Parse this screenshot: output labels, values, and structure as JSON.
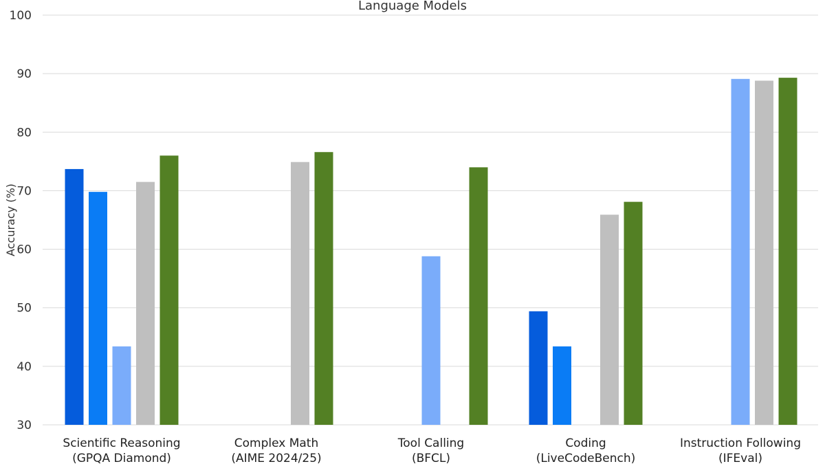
{
  "chart_data": {
    "type": "bar",
    "title": "Language Models",
    "ylabel": "Accuracy (%)",
    "xlabel": "",
    "ylim": [
      30,
      100
    ],
    "yticks": [
      30,
      40,
      50,
      60,
      70,
      80,
      90,
      100
    ],
    "grid": true,
    "categories": [
      [
        "Scientific Reasoning",
        "(GPQA Diamond)"
      ],
      [
        "Complex Math",
        "(AIME 2024/25)"
      ],
      [
        "Tool Calling",
        "(BFCL)"
      ],
      [
        "Coding",
        "(LiveCodeBench)"
      ],
      [
        "Instruction Following",
        "(IFEval)"
      ]
    ],
    "series": [
      {
        "color": "#055cdc",
        "values": [
          73.7,
          null,
          null,
          49.4,
          null
        ]
      },
      {
        "color": "#0a7cf5",
        "values": [
          69.8,
          null,
          null,
          43.4,
          null
        ]
      },
      {
        "color": "#7aacfa",
        "values": [
          43.4,
          null,
          58.8,
          null,
          89.1
        ]
      },
      {
        "color": "#bfbfbf",
        "values": [
          71.5,
          74.9,
          null,
          65.9,
          88.8
        ]
      },
      {
        "color": "#538024",
        "values": [
          76.0,
          76.6,
          74.0,
          68.1,
          89.3
        ]
      }
    ]
  }
}
